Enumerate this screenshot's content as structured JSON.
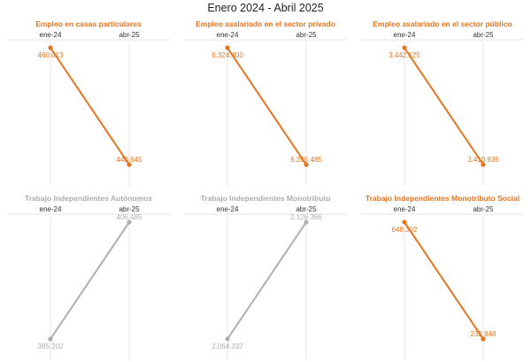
{
  "title": "Enero 2024 - Abril 2025",
  "colors": {
    "decrease": "#E8731E",
    "increase": "#AFAFAF",
    "grid": "#E6E6E6",
    "title_gray": "#A9ADB2"
  },
  "chart_data": [
    {
      "type": "line",
      "title": "Empleo en casas particulares",
      "categories": [
        "ene-24",
        "abr-25"
      ],
      "values": [
        460013,
        440645
      ],
      "value_labels": [
        "460.013",
        "440.645"
      ],
      "color": "#E8731E"
    },
    {
      "type": "line",
      "title": "Empleo asalariado en el sector privado",
      "categories": [
        "ene-24",
        "abr-25"
      ],
      "values": [
        6324400,
        6265485
      ],
      "value_labels": [
        "6.324.400",
        "6.265.485"
      ],
      "color": "#E8731E"
    },
    {
      "type": "line",
      "title": "Empleo asalariado en el sector público",
      "categories": [
        "ene-24",
        "abr-25"
      ],
      "values": [
        3442125,
        3410935
      ],
      "value_labels": [
        "3.442.125",
        "3.410.935"
      ],
      "color": "#E8731E"
    },
    {
      "type": "line",
      "title": "Trabajo Independientes Autónomos",
      "categories": [
        "ene-24",
        "abr-25"
      ],
      "values": [
        385202,
        406485
      ],
      "value_labels": [
        "385.202",
        "406.485"
      ],
      "color": "#AFAFAF"
    },
    {
      "type": "line",
      "title": "Trabajo Independientes Monotributo",
      "categories": [
        "ene-24",
        "abr-25"
      ],
      "values": [
        2064337,
        2126366
      ],
      "value_labels": [
        "2.064.337",
        "2.126.366"
      ],
      "color": "#AFAFAF"
    },
    {
      "type": "line",
      "title": "Trabajo Independientes Monotributo Social",
      "categories": [
        "ene-24",
        "abr-25"
      ],
      "values": [
        648302,
        232948
      ],
      "value_labels": [
        "648.302",
        "232.948"
      ],
      "color": "#E8731E"
    }
  ]
}
